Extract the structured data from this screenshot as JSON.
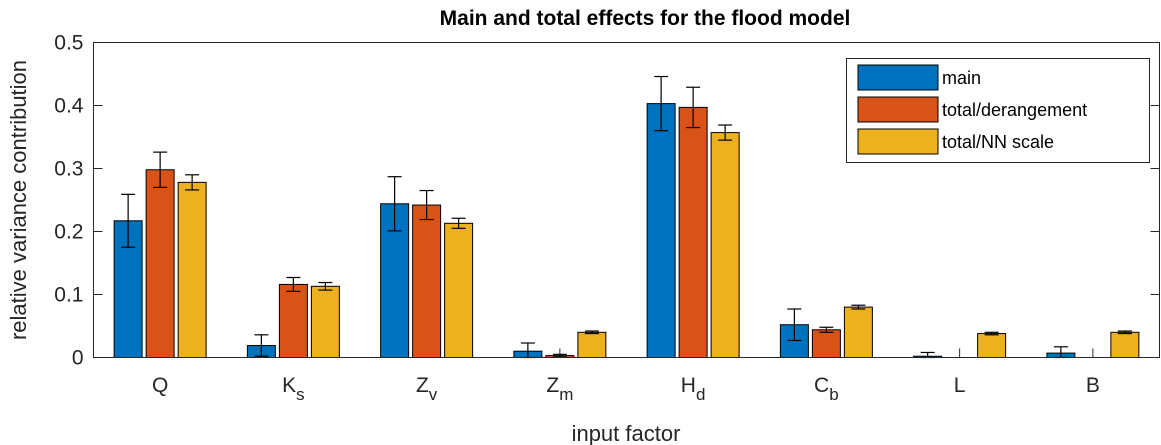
{
  "chart_data": {
    "type": "bar",
    "title": "Main and total effects for the flood model",
    "xlabel": "input factor",
    "ylabel": "relative variance contribution",
    "ylim": [
      0,
      0.5
    ],
    "yticks": [
      "0",
      "0.1",
      "0.2",
      "0.3",
      "0.4",
      "0.5"
    ],
    "ytick_values": [
      0,
      0.1,
      0.2,
      0.3,
      0.4,
      0.5
    ],
    "categories": [
      {
        "base": "Q",
        "sub": ""
      },
      {
        "base": "K",
        "sub": "s"
      },
      {
        "base": "Z",
        "sub": "v"
      },
      {
        "base": "Z",
        "sub": "m"
      },
      {
        "base": "H",
        "sub": "d"
      },
      {
        "base": "C",
        "sub": "b"
      },
      {
        "base": "L",
        "sub": ""
      },
      {
        "base": "B",
        "sub": ""
      }
    ],
    "series": [
      {
        "name": "main",
        "color": "#0072BD",
        "values": [
          0.217,
          0.019,
          0.244,
          0.01,
          0.403,
          0.052,
          0.002,
          0.007
        ],
        "errors": [
          0.042,
          0.017,
          0.043,
          0.013,
          0.043,
          0.025,
          0.006,
          0.01
        ]
      },
      {
        "name": "total/derangement",
        "color": "#D95319",
        "values": [
          0.298,
          0.116,
          0.242,
          0.003,
          0.397,
          0.044,
          0.0,
          0.0
        ],
        "errors": [
          0.028,
          0.011,
          0.023,
          0.002,
          0.032,
          0.004,
          0.0,
          0.0
        ]
      },
      {
        "name": "total/NN scale",
        "color": "#EDB120",
        "values": [
          0.278,
          0.113,
          0.213,
          0.04,
          0.357,
          0.08,
          0.038,
          0.04
        ],
        "errors": [
          0.012,
          0.006,
          0.008,
          0.002,
          0.012,
          0.003,
          0.002,
          0.002
        ]
      }
    ],
    "grid": false,
    "legend_position": "top-right"
  }
}
